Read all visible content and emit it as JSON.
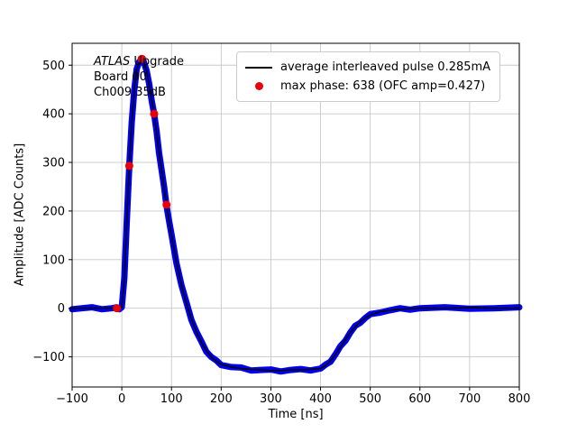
{
  "chart_data": {
    "type": "line",
    "title": "",
    "xlabel": "Time [ns]",
    "ylabel": "Amplitude [ADC Counts]",
    "xlim": [
      -100,
      800
    ],
    "ylim": [
      -162,
      545
    ],
    "xticks": [
      -100,
      0,
      100,
      200,
      300,
      400,
      500,
      600,
      700,
      800
    ],
    "yticks": [
      -100,
      0,
      100,
      200,
      300,
      400,
      500
    ],
    "grid": true,
    "legend_position": "upper right",
    "pulse_current_mA": 0.285,
    "max_phase": 638,
    "ofc_amp": 0.427,
    "series": [
      {
        "name": "average interleaved pulse 0.285mA",
        "kind": "line",
        "band_color": "#0000ee",
        "line_color": "#000000",
        "points": [
          [
            -100,
            0
          ],
          [
            -80,
            0
          ],
          [
            -60,
            0
          ],
          [
            -40,
            0
          ],
          [
            -20,
            0
          ],
          [
            -10,
            0
          ],
          [
            -5,
            0
          ],
          [
            0,
            2
          ],
          [
            5,
            60
          ],
          [
            10,
            180
          ],
          [
            15,
            293
          ],
          [
            20,
            380
          ],
          [
            25,
            450
          ],
          [
            30,
            492
          ],
          [
            35,
            505
          ],
          [
            38,
            512
          ],
          [
            40,
            513
          ],
          [
            42,
            512
          ],
          [
            45,
            506
          ],
          [
            50,
            488
          ],
          [
            55,
            460
          ],
          [
            60,
            430
          ],
          [
            65,
            400
          ],
          [
            70,
            362
          ],
          [
            75,
            322
          ],
          [
            80,
            285
          ],
          [
            85,
            248
          ],
          [
            90,
            213
          ],
          [
            95,
            180
          ],
          [
            100,
            150
          ],
          [
            110,
            95
          ],
          [
            120,
            48
          ],
          [
            130,
            10
          ],
          [
            140,
            -22
          ],
          [
            150,
            -48
          ],
          [
            160,
            -70
          ],
          [
            170,
            -87
          ],
          [
            180,
            -100
          ],
          [
            190,
            -109
          ],
          [
            200,
            -115
          ],
          [
            220,
            -121
          ],
          [
            240,
            -124
          ],
          [
            260,
            -126
          ],
          [
            280,
            -127
          ],
          [
            300,
            -128
          ],
          [
            320,
            -128
          ],
          [
            340,
            -127
          ],
          [
            360,
            -127
          ],
          [
            380,
            -126
          ],
          [
            400,
            -124
          ],
          [
            410,
            -118
          ],
          [
            420,
            -108
          ],
          [
            430,
            -95
          ],
          [
            440,
            -80
          ],
          [
            450,
            -65
          ],
          [
            460,
            -50
          ],
          [
            470,
            -38
          ],
          [
            480,
            -28
          ],
          [
            490,
            -20
          ],
          [
            500,
            -14
          ],
          [
            520,
            -7
          ],
          [
            540,
            -4
          ],
          [
            560,
            -2
          ],
          [
            580,
            -1
          ],
          [
            600,
            0
          ],
          [
            650,
            0
          ],
          [
            700,
            1
          ],
          [
            750,
            0
          ],
          [
            800,
            0
          ]
        ]
      },
      {
        "name": "max phase: 638 (OFC amp=0.427)",
        "kind": "scatter",
        "color": "#e8000b",
        "points": [
          [
            -10,
            0
          ],
          [
            15,
            293
          ],
          [
            40,
            513
          ],
          [
            65,
            400
          ],
          [
            90,
            213
          ]
        ]
      }
    ]
  },
  "annotation": {
    "line1_italic": "ATLAS",
    "line1_rest": " Upgrade",
    "line2": "Board 00",
    "line3": "Ch009 35dB"
  },
  "colors": {
    "grid": "#c8c8c8",
    "spine": "#000000",
    "band": "#0000ee",
    "line": "#000000",
    "marker": "#e8000b"
  }
}
